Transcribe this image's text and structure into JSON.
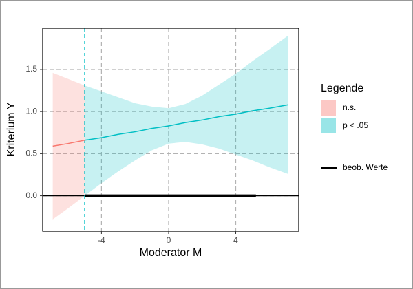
{
  "chart_data": {
    "type": "johnson-neyman",
    "xlabel": "Moderator M",
    "ylabel": "Kriterium Y",
    "legend_title": "Legende",
    "xlim": [
      -7.5,
      7.75
    ],
    "ylim": [
      -0.42,
      1.99
    ],
    "xticks": [
      -4,
      0,
      4
    ],
    "yticks": [
      {
        "value": 0,
        "label": "0.0"
      },
      {
        "value": 0.5,
        "label": "0.5"
      },
      {
        "value": 1,
        "label": "1.0"
      },
      {
        "value": 1.5,
        "label": "1.5"
      }
    ],
    "grid": true,
    "series": [
      {
        "name": "n.s.",
        "color": "#F8766D",
        "x": [
          -6.9,
          -6,
          -5
        ],
        "values": [
          0.59,
          0.62,
          0.66
        ],
        "lower": [
          -0.28,
          -0.15,
          0.0
        ],
        "upper": [
          1.46,
          1.39,
          1.31
        ]
      },
      {
        "name": "p < .05",
        "color": "#00BFC4",
        "x": [
          -5,
          -4,
          -3,
          -2,
          -1,
          0,
          1,
          2,
          3,
          4,
          5,
          6,
          7.1
        ],
        "values": [
          0.66,
          0.69,
          0.73,
          0.76,
          0.8,
          0.83,
          0.87,
          0.9,
          0.94,
          0.97,
          1.01,
          1.04,
          1.08
        ],
        "lower": [
          0.0,
          0.15,
          0.29,
          0.42,
          0.54,
          0.62,
          0.64,
          0.61,
          0.56,
          0.49,
          0.42,
          0.34,
          0.26
        ],
        "upper": [
          1.31,
          1.24,
          1.17,
          1.1,
          1.06,
          1.04,
          1.09,
          1.19,
          1.32,
          1.45,
          1.6,
          1.74,
          1.9
        ]
      }
    ],
    "jn_point": -5,
    "observed": {
      "name": "beob. Werte",
      "range": [
        -5,
        5.2
      ],
      "color": "#000000"
    }
  }
}
